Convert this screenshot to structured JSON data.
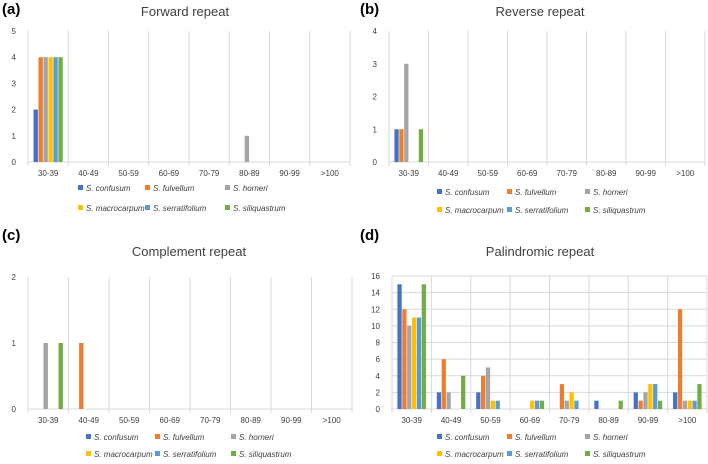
{
  "chart_data": [
    {
      "letter": "(a)",
      "title": "Forward repeat",
      "type": "bar",
      "categories": [
        "30-39",
        "40-49",
        "50-59",
        "60-69",
        "70-79",
        "80-89",
        "90-99",
        ">100"
      ],
      "ylim": [
        0,
        5
      ],
      "yticks": [
        "0",
        "1",
        "2",
        "3",
        "4",
        "5"
      ],
      "grid": "vertical",
      "legend_position": "bottom",
      "series": [
        {
          "name": "S. confusum",
          "color": "#4472c4",
          "values": [
            2,
            0,
            0,
            0,
            0,
            0,
            0,
            0
          ]
        },
        {
          "name": "S. fulvellum",
          "color": "#ed7d31",
          "values": [
            4,
            0,
            0,
            0,
            0,
            0,
            0,
            0
          ]
        },
        {
          "name": "S. horneri",
          "color": "#a5a5a5",
          "values": [
            4,
            0,
            0,
            0,
            0,
            1,
            0,
            0
          ]
        },
        {
          "name": "S. macrocarpum",
          "color": "#ffc000",
          "values": [
            4,
            0,
            0,
            0,
            0,
            0,
            0,
            0
          ]
        },
        {
          "name": "S. serratifolium",
          "color": "#5b9bd5",
          "values": [
            4,
            0,
            0,
            0,
            0,
            0,
            0,
            0
          ]
        },
        {
          "name": "S. siliquastrum",
          "color": "#70ad47",
          "values": [
            4,
            0,
            0,
            0,
            0,
            0,
            0,
            0
          ]
        }
      ]
    },
    {
      "letter": "(b)",
      "title": "Reverse repeat",
      "type": "bar",
      "categories": [
        "30-39",
        "40-49",
        "50-59",
        "60-69",
        "70-79",
        "80-89",
        "90-99",
        ">100"
      ],
      "ylim": [
        0,
        4
      ],
      "yticks": [
        "0",
        "1",
        "2",
        "3",
        "4"
      ],
      "grid": "vertical",
      "legend_position": "bottom",
      "series": [
        {
          "name": "S. confusum",
          "color": "#4472c4",
          "values": [
            1,
            0,
            0,
            0,
            0,
            0,
            0,
            0
          ]
        },
        {
          "name": "S. fulvellum",
          "color": "#ed7d31",
          "values": [
            1,
            0,
            0,
            0,
            0,
            0,
            0,
            0
          ]
        },
        {
          "name": "S. horneri",
          "color": "#a5a5a5",
          "values": [
            3,
            0,
            0,
            0,
            0,
            0,
            0,
            0
          ]
        },
        {
          "name": "S. macrocarpum",
          "color": "#ffc000",
          "values": [
            0,
            0,
            0,
            0,
            0,
            0,
            0,
            0
          ]
        },
        {
          "name": "S. serratifolium",
          "color": "#5b9bd5",
          "values": [
            0,
            0,
            0,
            0,
            0,
            0,
            0,
            0
          ]
        },
        {
          "name": "S. siliquastrum",
          "color": "#70ad47",
          "values": [
            1,
            0,
            0,
            0,
            0,
            0,
            0,
            0
          ]
        }
      ]
    },
    {
      "letter": "(c)",
      "title": "Complement repeat",
      "type": "bar",
      "categories": [
        "30-39",
        "40-49",
        "50-59",
        "60-69",
        "70-79",
        "80-89",
        "90-99",
        ">100"
      ],
      "ylim": [
        0,
        2
      ],
      "yticks": [
        "0",
        "1",
        "2"
      ],
      "grid": "vertical",
      "legend_position": "bottom",
      "series": [
        {
          "name": "S. confusum",
          "color": "#4472c4",
          "values": [
            0,
            0,
            0,
            0,
            0,
            0,
            0,
            0
          ]
        },
        {
          "name": "S. fulvellum",
          "color": "#ed7d31",
          "values": [
            0,
            1,
            0,
            0,
            0,
            0,
            0,
            0
          ]
        },
        {
          "name": "S. horneri",
          "color": "#a5a5a5",
          "values": [
            1,
            0,
            0,
            0,
            0,
            0,
            0,
            0
          ]
        },
        {
          "name": "S. macrocarpum",
          "color": "#ffc000",
          "values": [
            0,
            0,
            0,
            0,
            0,
            0,
            0,
            0
          ]
        },
        {
          "name": "S. serratifolium",
          "color": "#5b9bd5",
          "values": [
            0,
            0,
            0,
            0,
            0,
            0,
            0,
            0
          ]
        },
        {
          "name": "S. siliquastrum",
          "color": "#70ad47",
          "values": [
            1,
            0,
            0,
            0,
            0,
            0,
            0,
            0
          ]
        }
      ]
    },
    {
      "letter": "(d)",
      "title": "Palindromic repeat",
      "type": "bar",
      "categories": [
        "30-39",
        "40-49",
        "50-59",
        "60-69",
        "70-79",
        "80-89",
        "90-99",
        ">100"
      ],
      "ylim": [
        0,
        16
      ],
      "yticks": [
        "0",
        "2",
        "4",
        "6",
        "8",
        "10",
        "12",
        "14",
        "16"
      ],
      "grid": "both",
      "legend_position": "bottom",
      "series": [
        {
          "name": "S. confusum",
          "color": "#4472c4",
          "values": [
            15,
            2,
            2,
            0,
            0,
            1,
            2,
            2
          ]
        },
        {
          "name": "S. fulvellum",
          "color": "#ed7d31",
          "values": [
            12,
            6,
            4,
            0,
            3,
            0,
            1,
            12
          ]
        },
        {
          "name": "S. horneri",
          "color": "#a5a5a5",
          "values": [
            10,
            2,
            5,
            0,
            1,
            0,
            2,
            1
          ]
        },
        {
          "name": "S. macrocarpum",
          "color": "#ffc000",
          "values": [
            11,
            0,
            1,
            1,
            2,
            0,
            3,
            1
          ]
        },
        {
          "name": "S. serratifolium",
          "color": "#5b9bd5",
          "values": [
            11,
            0,
            1,
            1,
            1,
            0,
            3,
            1
          ]
        },
        {
          "name": "S. siliquastrum",
          "color": "#70ad47",
          "values": [
            15,
            4,
            0,
            1,
            0,
            1,
            1,
            3
          ]
        }
      ]
    }
  ]
}
